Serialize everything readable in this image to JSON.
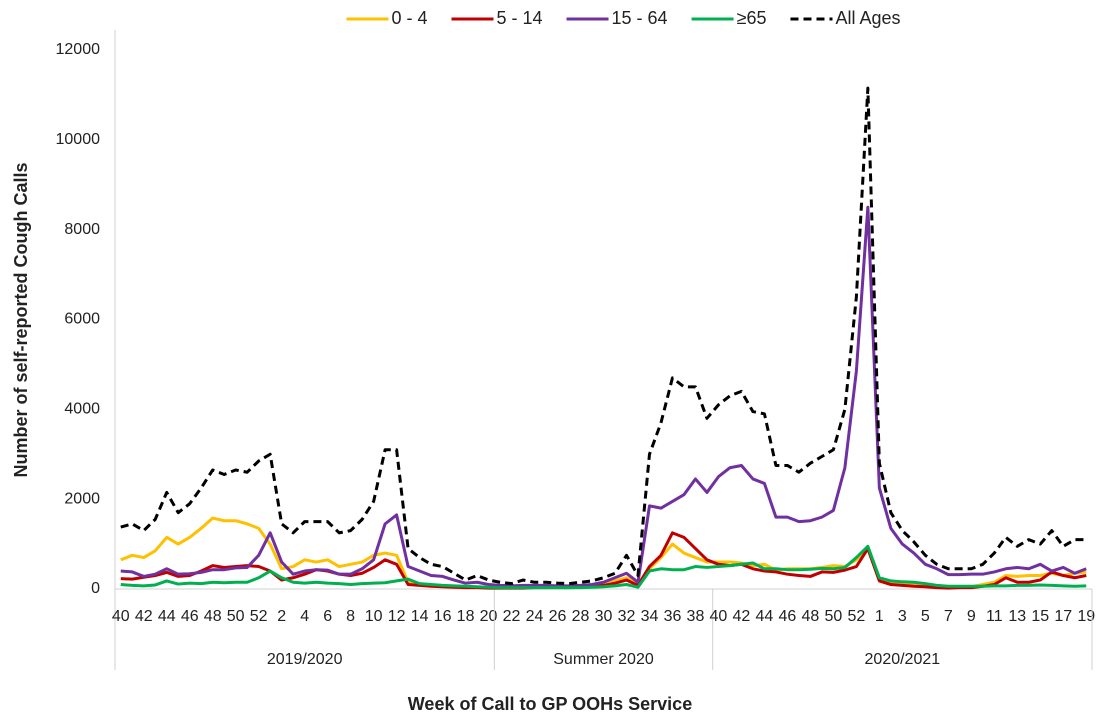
{
  "chart_data": {
    "type": "line",
    "x_label": "Week of Call to GP OOHs Service",
    "y_label": "Number of self-reported Cough Calls",
    "groups": [
      {
        "label": "2019/2020",
        "categories": [
          "40",
          null,
          "42",
          null,
          "44",
          null,
          "46",
          null,
          "48",
          null,
          "50",
          null,
          "52",
          null,
          "2",
          null,
          "4",
          null,
          "6",
          null,
          "8",
          null,
          "10",
          null,
          "12",
          null,
          "14",
          null,
          "16",
          null,
          "18",
          null,
          "20"
        ]
      },
      {
        "label": "Summer 2020",
        "categories": [
          null,
          "22",
          null,
          "24",
          null,
          "26",
          null,
          "28",
          null,
          "30",
          null,
          "32",
          null,
          "34",
          null,
          "36",
          null,
          "38",
          null
        ]
      },
      {
        "label": "2020/2021",
        "categories": [
          "40",
          null,
          "42",
          null,
          "44",
          null,
          "46",
          null,
          "48",
          null,
          "50",
          null,
          "52",
          null,
          "1",
          null,
          "3",
          null,
          "5",
          null,
          "7",
          null,
          "9",
          null,
          "11",
          null,
          "13",
          null,
          "15",
          null,
          "17",
          null,
          "19"
        ]
      }
    ],
    "series": [
      {
        "name": "0 - 4",
        "color": "#ffc000",
        "values": [
          650,
          750,
          700,
          850,
          1150,
          1000,
          1150,
          1350,
          1580,
          1520,
          1520,
          1450,
          1350,
          1000,
          450,
          500,
          650,
          600,
          650,
          500,
          550,
          600,
          750,
          800,
          750,
          150,
          100,
          80,
          60,
          50,
          40,
          40,
          30,
          30,
          30,
          40,
          40,
          40,
          50,
          50,
          60,
          80,
          120,
          180,
          250,
          100,
          450,
          700,
          1000,
          800,
          700,
          600,
          600,
          600,
          580,
          520,
          550,
          420,
          450,
          450,
          450,
          480,
          520,
          500,
          650,
          900,
          200,
          150,
          120,
          100,
          80,
          60,
          40,
          50,
          50,
          100,
          150,
          300,
          280,
          300,
          300,
          350,
          300,
          350,
          380
        ]
      },
      {
        "name": "5 - 14",
        "color": "#c00000",
        "values": [
          230,
          220,
          260,
          300,
          370,
          280,
          300,
          400,
          520,
          480,
          500,
          520,
          500,
          400,
          200,
          250,
          330,
          430,
          400,
          330,
          300,
          350,
          480,
          650,
          550,
          100,
          80,
          60,
          50,
          40,
          30,
          30,
          20,
          20,
          20,
          20,
          30,
          30,
          30,
          30,
          40,
          60,
          80,
          130,
          200,
          80,
          500,
          750,
          1250,
          1150,
          900,
          650,
          550,
          520,
          550,
          450,
          400,
          380,
          330,
          300,
          280,
          380,
          370,
          420,
          500,
          900,
          180,
          100,
          80,
          60,
          50,
          30,
          20,
          30,
          30,
          60,
          100,
          250,
          150,
          150,
          200,
          380,
          300,
          250,
          300
        ]
      },
      {
        "name": "15 - 64",
        "color": "#7030a0",
        "values": [
          400,
          380,
          280,
          330,
          450,
          330,
          340,
          370,
          430,
          430,
          470,
          480,
          750,
          1250,
          600,
          330,
          400,
          430,
          420,
          330,
          330,
          450,
          650,
          1450,
          1650,
          500,
          400,
          300,
          280,
          200,
          130,
          150,
          100,
          80,
          70,
          80,
          80,
          80,
          70,
          70,
          80,
          100,
          150,
          250,
          350,
          150,
          1850,
          1800,
          1950,
          2100,
          2450,
          2150,
          2500,
          2700,
          2750,
          2450,
          2350,
          1600,
          1600,
          1500,
          1520,
          1600,
          1750,
          2700,
          4850,
          8500,
          2250,
          1350,
          1000,
          800,
          550,
          450,
          320,
          320,
          330,
          330,
          380,
          450,
          480,
          450,
          550,
          400,
          480,
          350,
          450
        ]
      },
      {
        "name": "≥65",
        "color": "#00b050",
        "values": [
          100,
          80,
          70,
          90,
          180,
          110,
          130,
          120,
          150,
          140,
          150,
          150,
          250,
          400,
          250,
          150,
          130,
          150,
          130,
          120,
          100,
          120,
          130,
          140,
          180,
          220,
          120,
          100,
          80,
          70,
          60,
          50,
          40,
          30,
          30,
          30,
          30,
          30,
          30,
          30,
          30,
          40,
          50,
          70,
          100,
          40,
          400,
          450,
          430,
          430,
          500,
          480,
          500,
          520,
          550,
          580,
          450,
          450,
          430,
          430,
          440,
          460,
          450,
          480,
          700,
          950,
          250,
          180,
          160,
          150,
          120,
          80,
          60,
          60,
          60,
          60,
          70,
          70,
          80,
          80,
          90,
          80,
          70,
          60,
          70
        ]
      },
      {
        "name": "All Ages",
        "color": "#000000",
        "dashed": true,
        "values": [
          1380,
          1450,
          1300,
          1550,
          2150,
          1700,
          1900,
          2250,
          2650,
          2550,
          2650,
          2600,
          2850,
          3000,
          1450,
          1250,
          1500,
          1500,
          1500,
          1250,
          1300,
          1550,
          1950,
          3100,
          3100,
          900,
          700,
          550,
          500,
          350,
          200,
          300,
          200,
          150,
          120,
          200,
          150,
          150,
          130,
          120,
          150,
          180,
          250,
          350,
          750,
          300,
          3000,
          3700,
          4700,
          4500,
          4500,
          3800,
          4100,
          4300,
          4400,
          3950,
          3900,
          2750,
          2750,
          2600,
          2800,
          2950,
          3100,
          4000,
          6500,
          11150,
          2800,
          1700,
          1300,
          1050,
          750,
          550,
          450,
          450,
          450,
          550,
          800,
          1150,
          950,
          1100,
          1000,
          1300,
          950,
          1100,
          1100
        ]
      }
    ],
    "ylim": [
      0,
      12000
    ],
    "yticks": [
      0,
      2000,
      4000,
      6000,
      8000,
      10000,
      12000
    ],
    "grid": false,
    "legend": "top"
  }
}
